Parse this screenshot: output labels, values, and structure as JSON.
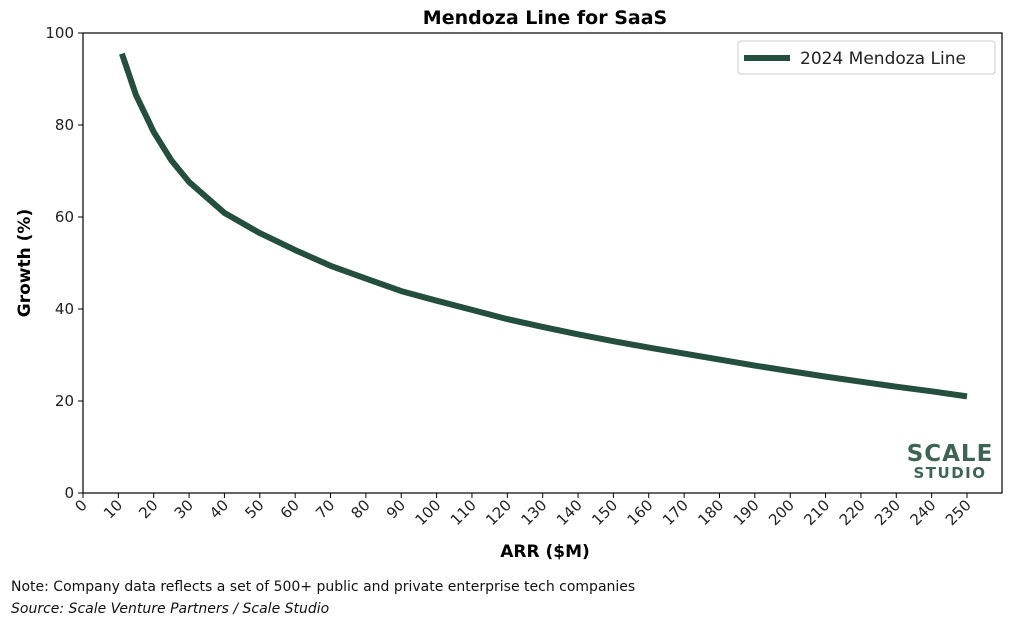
{
  "chart_data": {
    "type": "line",
    "title": "Mendoza Line for SaaS",
    "xlabel": "ARR ($M)",
    "ylabel": "Growth (%)",
    "xlim": [
      0,
      250
    ],
    "ylim": [
      0,
      100
    ],
    "xticks": [
      0,
      10,
      20,
      30,
      40,
      50,
      60,
      70,
      80,
      90,
      100,
      110,
      120,
      130,
      140,
      150,
      160,
      170,
      180,
      190,
      200,
      210,
      220,
      230,
      240,
      250
    ],
    "yticks": [
      0,
      20,
      40,
      60,
      80,
      100
    ],
    "grid": false,
    "legend_position": "top-right",
    "series": [
      {
        "name": "2024 Mendoza Line",
        "color": "#244e3d",
        "x": [
          11,
          15,
          20,
          25,
          30,
          40,
          50,
          60,
          70,
          80,
          90,
          100,
          110,
          120,
          130,
          140,
          150,
          160,
          170,
          180,
          190,
          200,
          210,
          220,
          230,
          240,
          250
        ],
        "y": [
          95.5,
          86.5,
          78.5,
          72.3,
          67.6,
          60.9,
          56.5,
          52.8,
          49.4,
          46.6,
          43.9,
          41.8,
          39.8,
          37.8,
          36.1,
          34.5,
          33.0,
          31.6,
          30.3,
          29.0,
          27.7,
          26.5,
          25.3,
          24.2,
          23.1,
          22.1,
          21.0
        ]
      }
    ]
  },
  "logo": {
    "main": "SCALE",
    "sub": "STUDIO"
  },
  "footer": {
    "note": "Note: Company data reflects a set of 500+ public and private enterprise tech companies",
    "source": "Source: Scale Venture Partners / Scale Studio"
  }
}
